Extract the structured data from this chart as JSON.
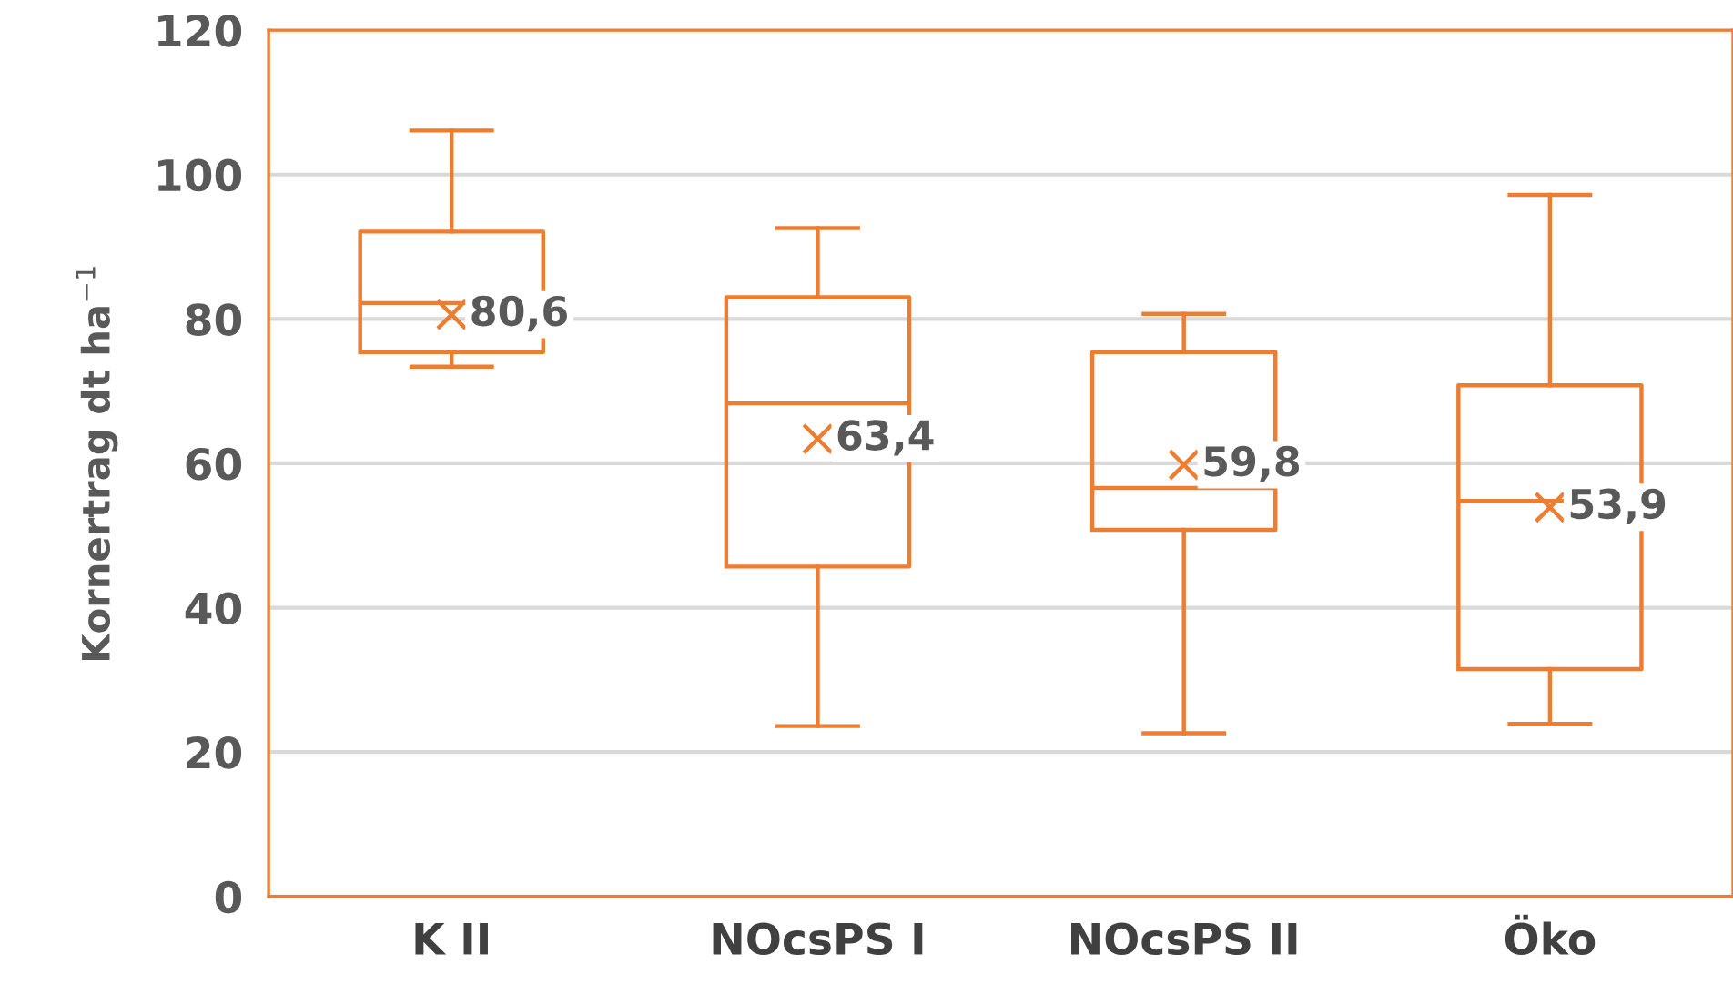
{
  "chart_data": {
    "type": "box",
    "ylabel": "Kornertrag dt ha$^{−1}$",
    "categories": [
      "K II",
      "NOcsPS I",
      "NOcsPS II",
      "Öko"
    ],
    "boxes": [
      {
        "low": 73.4,
        "q1": 75.4,
        "median": 82.2,
        "q3": 92.1,
        "high": 106.1,
        "mean": 80.6
      },
      {
        "low": 23.6,
        "q1": 45.7,
        "median": 68.3,
        "q3": 83.0,
        "high": 92.6,
        "mean": 63.4
      },
      {
        "low": 22.6,
        "q1": 50.8,
        "median": 56.6,
        "q3": 75.4,
        "high": 80.7,
        "mean": 59.8
      },
      {
        "low": 23.9,
        "q1": 31.5,
        "median": 54.8,
        "q3": 70.8,
        "high": 97.2,
        "mean": 53.9
      }
    ],
    "color": "#ed7d31",
    "annotations": [
      "80,6",
      "63,4",
      "59,8",
      "53,9"
    ],
    "ylim": [
      0,
      120
    ],
    "yticks": [
      0,
      20,
      40,
      60,
      80,
      100,
      120
    ],
    "grid": "y",
    "marker": "cross"
  }
}
